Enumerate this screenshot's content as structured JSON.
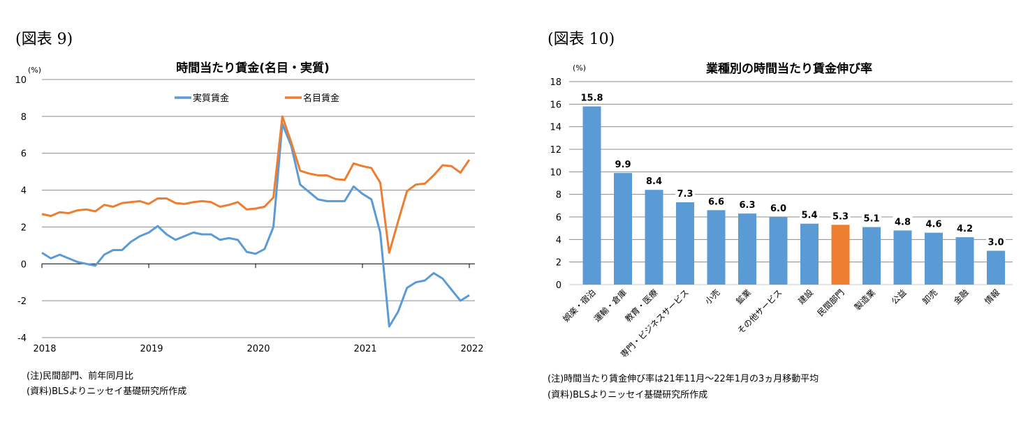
{
  "figures": [
    {
      "label": "(図表 9)",
      "notes": [
        "(注)民間部門、前年同月比",
        "(資料)BLSよりニッセイ基礎研究所作成"
      ]
    },
    {
      "label": "(図表 10)",
      "notes": [
        "(注)時間当たり賃金伸び率は21年11月～22年1月の3ヵ月移動平均",
        "(資料)BLSよりニッセイ基礎研究所作成"
      ]
    }
  ],
  "chart_data": [
    {
      "type": "line",
      "title": "時間当たり賃金(名目・実質)",
      "ylabel": "(%)",
      "ylim": [
        -4,
        10
      ],
      "yticks": [
        -4,
        -2,
        0,
        2,
        4,
        6,
        8,
        10
      ],
      "x_start": "2018-01",
      "x_end": "2022-01",
      "frequency": "monthly",
      "xtick_labels": [
        "2018",
        "2019",
        "2020",
        "2021",
        "2022"
      ],
      "grid": true,
      "legend": "top-center",
      "series": [
        {
          "name": "実質賃金",
          "color": "#5b9bd5",
          "values": [
            0.6,
            0.3,
            0.5,
            0.3,
            0.1,
            0.0,
            -0.1,
            0.5,
            0.75,
            0.75,
            1.2,
            1.5,
            1.7,
            2.05,
            1.6,
            1.3,
            1.5,
            1.7,
            1.6,
            1.6,
            1.3,
            1.4,
            1.3,
            0.65,
            0.55,
            0.8,
            2.0,
            7.6,
            6.4,
            4.3,
            3.9,
            3.5,
            3.4,
            3.4,
            3.4,
            4.2,
            3.8,
            3.5,
            1.7,
            -3.4,
            -2.6,
            -1.3,
            -1.0,
            -0.9,
            -0.5,
            -0.8,
            -1.4,
            -2.0,
            -1.7
          ]
        },
        {
          "name": "名目賃金",
          "color": "#ed7d31",
          "values": [
            2.7,
            2.6,
            2.8,
            2.75,
            2.9,
            2.95,
            2.85,
            3.2,
            3.1,
            3.3,
            3.35,
            3.4,
            3.25,
            3.55,
            3.55,
            3.3,
            3.25,
            3.35,
            3.4,
            3.35,
            3.1,
            3.2,
            3.35,
            2.95,
            3.0,
            3.1,
            3.6,
            8.0,
            6.6,
            5.05,
            4.9,
            4.8,
            4.8,
            4.6,
            4.55,
            5.45,
            5.3,
            5.2,
            4.4,
            0.6,
            2.3,
            3.95,
            4.3,
            4.35,
            4.8,
            5.35,
            5.3,
            4.95,
            5.65
          ]
        }
      ]
    },
    {
      "type": "bar",
      "title": "業種別の時間当たり賃金伸び率",
      "ylabel": "(%)",
      "ylim": [
        0,
        18
      ],
      "yticks": [
        0,
        2,
        4,
        6,
        8,
        10,
        12,
        14,
        16,
        18
      ],
      "grid": true,
      "categories": [
        "娯楽・宿泊",
        "運輸・倉庫",
        "教育・医療",
        "専門・ビジネスサービス",
        "小売",
        "鉱業",
        "その他サービス",
        "建設",
        "民間部門",
        "製造業",
        "公益",
        "卸売",
        "金融",
        "情報"
      ],
      "values": [
        15.8,
        9.9,
        8.4,
        7.3,
        6.6,
        6.3,
        6.0,
        5.4,
        5.3,
        5.1,
        4.8,
        4.6,
        4.2,
        3.0
      ],
      "data_labels": [
        "15.8",
        "9.9",
        "8.4",
        "7.3",
        "6.6",
        "6.3",
        "6.0",
        "5.4",
        "5.3",
        "5.1",
        "4.8",
        "4.6",
        "4.2",
        "3.0"
      ],
      "colors": {
        "default": "#5b9bd5",
        "highlight": "#ed7d31"
      },
      "highlight_category": "民間部門"
    }
  ]
}
